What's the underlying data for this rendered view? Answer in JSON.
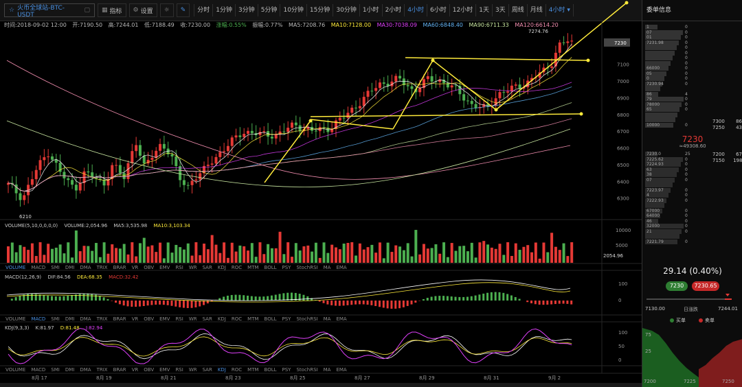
{
  "toolbar": {
    "symbol": "火币全球站-BTC-USDT",
    "indicators_label": "指标",
    "settings_label": "设置",
    "timeframes": [
      "分时",
      "1分钟",
      "3分钟",
      "5分钟",
      "10分钟",
      "15分钟",
      "30分钟",
      "1小时",
      "2小时",
      "4小时",
      "6小时",
      "12小时",
      "1天",
      "3天",
      "周线",
      "月线"
    ],
    "active_timeframe": "4小时",
    "timeframe_select": "4小时"
  },
  "info_bar": {
    "time": "时间:2018-09-02 12:00",
    "open": "开:7190.50",
    "high": "高:7244.01",
    "low": "低:7188.49",
    "close": "收:7230.00",
    "change": "涨幅:0.55%",
    "amplitude": "振幅:0.77%",
    "ma5": "MA5:7208.76",
    "ma10": "MA10:7128.00",
    "ma30": "MA30:7038.09",
    "ma60": "MA60:6848.40",
    "ma90": "MA90:6711.33",
    "ma120": "MA120:6614.20"
  },
  "main_chart": {
    "price_labels": [
      "7100",
      "7000",
      "6900",
      "6800",
      "6700",
      "6600",
      "6500",
      "6400",
      "6300"
    ],
    "current_price_tag": "7230",
    "high_marker": "7274.76",
    "low_marker": "6210",
    "date_labels": [
      "8月 17",
      "8月 19",
      "8月 21",
      "8月 23",
      "8月 25",
      "8月 27",
      "8月 29",
      "8月 31",
      "9月 2"
    ]
  },
  "volume_panel": {
    "label": "VOLUME(5,10,0,0,0,0)",
    "value": "VOLUME:2,054.96",
    "ma5": "MA5:3,535.98",
    "ma10": "MA10:3,103.34",
    "axis": [
      "10000",
      "5000"
    ],
    "current_tag": "2054.96"
  },
  "macd_panel": {
    "label": "MACD(12,26,9)",
    "dif": "DIF:84.56",
    "dea": "DEA:68.35",
    "macd": "MACD:32.42",
    "axis": [
      "100",
      "0"
    ]
  },
  "kdj_panel": {
    "label": "KDJ(9,3,3)",
    "k": "K:81.97",
    "d": "D:81.48",
    "j": "J:82.94",
    "axis": [
      "100",
      "50",
      "0"
    ]
  },
  "indicator_tabs": [
    "VOLUME",
    "MACD",
    "SMI",
    "DMI",
    "DMA",
    "TRIX",
    "BRAR",
    "VR",
    "OBV",
    "EMV",
    "RSI",
    "WR",
    "SAR",
    "KDJ",
    "ROC",
    "MTM",
    "BOLL",
    "PSY",
    "StochRSI",
    "MA",
    "EMA"
  ],
  "sidebar": {
    "title": "委单信息",
    "sell_orders": [
      {
        "price": "1",
        "qty": "0"
      },
      {
        "price": "07",
        "qty": "0"
      },
      {
        "price": "01",
        "qty": "0"
      },
      {
        "price": "7231.98",
        "qty": "0"
      },
      {
        "price": "",
        "qty": "0"
      },
      {
        "price": "",
        "qty": "0"
      },
      {
        "price": "",
        "qty": "0"
      },
      {
        "price": "",
        "qty": "0"
      },
      {
        "price": "66000",
        "qty": "0"
      },
      {
        "price": "05",
        "qty": "0"
      },
      {
        "price": "0",
        "qty": "0"
      },
      {
        "price": "7230.94",
        "qty": "0"
      },
      {
        "price": "",
        "qty": ""
      },
      {
        "price": "86",
        "qty": "4"
      },
      {
        "price": "79",
        "qty": "0"
      },
      {
        "price": "78000",
        "qty": "0"
      },
      {
        "price": "65",
        "qty": "0"
      },
      {
        "price": "",
        "qty": ""
      },
      {
        "price": "",
        "qty": ""
      },
      {
        "price": "10000",
        "qty": "0"
      }
    ],
    "side_values_sell": [
      [
        "7300",
        "86"
      ],
      [
        "7250",
        "43"
      ]
    ],
    "mid_price": "7230",
    "mid_sub": "≈49308.60",
    "buy_orders": [
      {
        "price": "7230.0",
        "qty": "25"
      },
      {
        "price": "7225.62",
        "qty": "0"
      },
      {
        "price": "7224.93",
        "qty": "0"
      },
      {
        "price": "63",
        "qty": "0"
      },
      {
        "price": "38",
        "qty": "0"
      },
      {
        "price": "07",
        "qty": "0"
      },
      {
        "price": "",
        "qty": ""
      },
      {
        "price": "7223.97",
        "qty": "0"
      },
      {
        "price": "4",
        "qty": "0"
      },
      {
        "price": "7222.93",
        "qty": "0"
      },
      {
        "price": "",
        "qty": ""
      },
      {
        "price": "67000",
        "qty": "0"
      },
      {
        "price": "64000",
        "qty": "0"
      },
      {
        "price": "46",
        "qty": "0"
      },
      {
        "price": "32000",
        "qty": "0"
      },
      {
        "price": "21",
        "qty": "0"
      },
      {
        "price": "",
        "qty": ""
      },
      {
        "price": "7221.79",
        "qty": "0"
      }
    ],
    "side_values_buy": [
      [
        "7200",
        "67"
      ],
      [
        "7150",
        "198"
      ]
    ],
    "change": "29.14 (0.40%)",
    "buy_pill": "7230",
    "sell_pill": "7230.65",
    "range_low": "7130.00",
    "range_label": "日涨跌",
    "range_high": "7244.01",
    "legend_buy": "买单",
    "legend_sell": "卖单",
    "depth_y_labels": [
      "75",
      "25"
    ],
    "depth_x_labels": [
      "7200",
      "7225",
      "7250"
    ]
  },
  "colors": {
    "up": "#e53935",
    "down": "#4caf50",
    "accent": "#4a90e2",
    "arrow": "#ffeb3b"
  }
}
